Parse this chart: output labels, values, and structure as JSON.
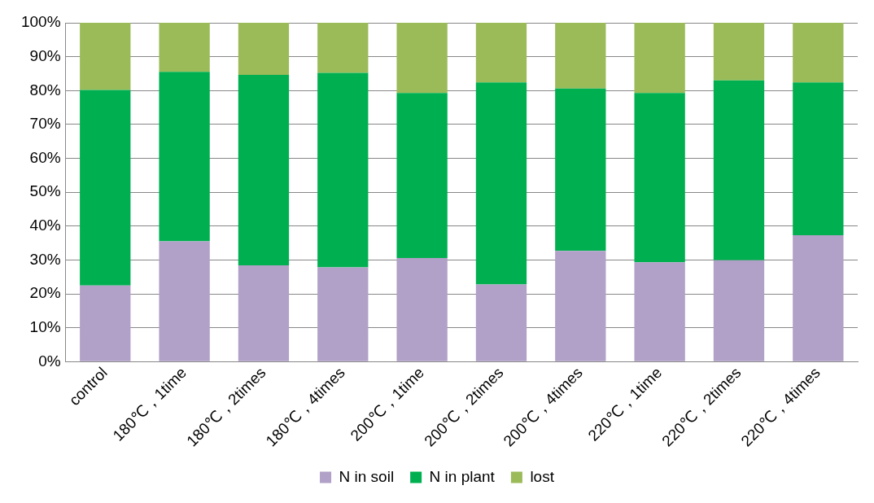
{
  "chart_data": {
    "type": "bar",
    "stacked": true,
    "categories": [
      "control",
      "180℃，1time",
      "180℃，2times",
      "180℃，4times",
      "200℃，1time",
      "200℃，2times",
      "200℃，4times",
      "220℃，1time",
      "220℃，2times",
      "220℃，4times"
    ],
    "series": [
      {
        "name": "N in soil",
        "color": "#b1a0c7",
        "values": [
          22.5,
          35.5,
          28.4,
          27.8,
          30.6,
          22.8,
          32.7,
          29.3,
          29.9,
          37.3
        ]
      },
      {
        "name": "N in plant",
        "color": "#00b050",
        "values": [
          57.7,
          50.0,
          56.2,
          57.4,
          48.7,
          59.6,
          47.9,
          50.0,
          53.1,
          45.1
        ]
      },
      {
        "name": "lost",
        "color": "#9bbb59",
        "values": [
          19.8,
          14.5,
          15.4,
          14.8,
          20.7,
          17.6,
          19.4,
          20.7,
          17.0,
          17.6
        ]
      }
    ],
    "ylim": [
      0,
      100
    ],
    "yticks": [
      {
        "value": 0,
        "label": "0%"
      },
      {
        "value": 10,
        "label": "10%"
      },
      {
        "value": 20,
        "label": "20%"
      },
      {
        "value": 30,
        "label": "30%"
      },
      {
        "value": 40,
        "label": "40%"
      },
      {
        "value": 50,
        "label": "50%"
      },
      {
        "value": 60,
        "label": "60%"
      },
      {
        "value": 70,
        "label": "70%"
      },
      {
        "value": 80,
        "label": "80%"
      },
      {
        "value": 90,
        "label": "90%"
      },
      {
        "value": 100,
        "label": "100%"
      }
    ],
    "grid": "y",
    "legend": "bottom"
  }
}
